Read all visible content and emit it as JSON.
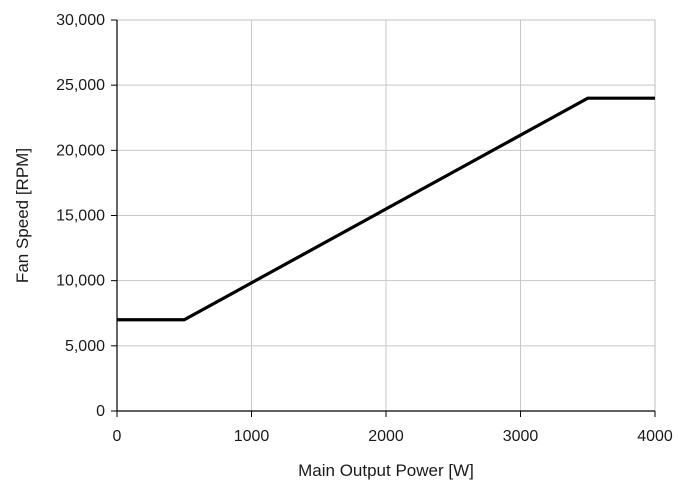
{
  "chart_data": {
    "type": "line",
    "title": "",
    "xlabel": "Main Output Power [W]",
    "ylabel": "Fan Speed [RPM]",
    "xlim": [
      0,
      4000
    ],
    "ylim": [
      0,
      30000
    ],
    "x_ticks": [
      0,
      1000,
      2000,
      3000,
      4000
    ],
    "x_tick_labels": [
      "0",
      "1000",
      "2000",
      "3000",
      "4000"
    ],
    "y_ticks": [
      0,
      5000,
      10000,
      15000,
      20000,
      25000,
      30000
    ],
    "y_tick_labels": [
      "0",
      "5,000",
      "10,000",
      "15,000",
      "20,000",
      "25,000",
      "30,000"
    ],
    "grid": true,
    "legend": "none",
    "series": [
      {
        "color": "#000000",
        "x": [
          0,
          500,
          3500,
          4000
        ],
        "y": [
          7000,
          7000,
          24000,
          24000
        ]
      }
    ]
  }
}
